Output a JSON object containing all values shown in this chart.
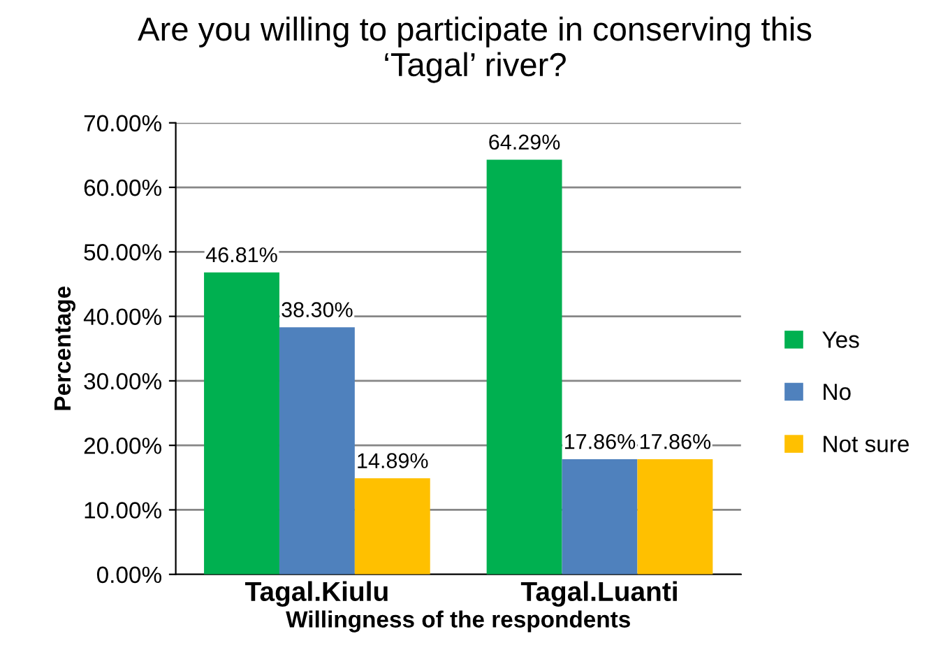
{
  "chart_data": {
    "type": "bar",
    "title": "Are you willing to participate in conserving this\n‘Tagal’ river?",
    "xlabel": "Willingness of the respondents",
    "ylabel": "Percentage",
    "categories": [
      "Tagal.Kiulu",
      "Tagal.Luanti"
    ],
    "series": [
      {
        "name": "Yes",
        "color": "#00b050",
        "values": [
          46.81,
          64.29
        ],
        "value_labels": [
          "46.81%",
          "64.29%"
        ]
      },
      {
        "name": "No",
        "color": "#4f81bd",
        "values": [
          38.3,
          17.86
        ],
        "value_labels": [
          "38.30%",
          "17.86%"
        ]
      },
      {
        "name": "Not sure",
        "color": "#ffc000",
        "values": [
          14.89,
          17.86
        ],
        "value_labels": [
          "14.89%",
          "17.86%"
        ]
      }
    ],
    "ylim": [
      0,
      70
    ],
    "yticks": [
      {
        "value": 0,
        "label": "0.00%"
      },
      {
        "value": 10,
        "label": "10.00%"
      },
      {
        "value": 20,
        "label": "20.00%"
      },
      {
        "value": 30,
        "label": "30.00%"
      },
      {
        "value": 40,
        "label": "40.00%"
      },
      {
        "value": 50,
        "label": "50.00%"
      },
      {
        "value": 60,
        "label": "60.00%"
      },
      {
        "value": 70,
        "label": "70.00%"
      }
    ],
    "grid": "y",
    "legend": "right"
  }
}
